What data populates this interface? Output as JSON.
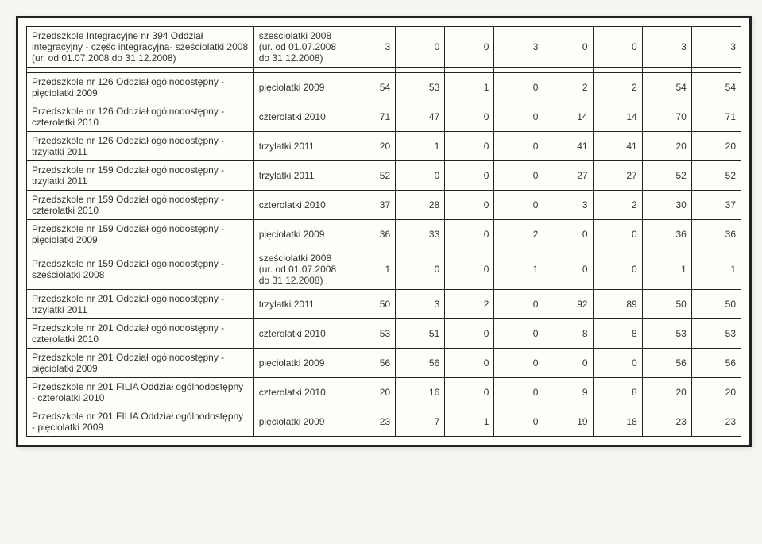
{
  "rows": [
    {
      "desc": "Przedszkole Integracyjne nr 394 Oddział integracyjny - część integracyjna- sześciolatki 2008 (ur. od 01.07.2008 do 31.12.2008)",
      "type": "sześciolatki 2008 (ur. od 01.07.2008 do 31.12.2008)",
      "v": [
        3,
        0,
        0,
        3,
        0,
        0,
        3,
        3
      ]
    },
    {
      "desc": "Przedszkole nr 126 Oddział ogólnodostępny - pięciolatki 2009",
      "type": "pięciolatki 2009",
      "v": [
        54,
        53,
        1,
        0,
        2,
        2,
        54,
        54
      ]
    },
    {
      "desc": "Przedszkole nr 126 Oddział ogólnodostępny - czterolatki 2010",
      "type": "czterolatki 2010",
      "v": [
        71,
        47,
        0,
        0,
        14,
        14,
        70,
        71
      ]
    },
    {
      "desc": "Przedszkole nr 126 Oddział ogólnodostępny - trzylatki 2011",
      "type": "trzylatki 2011",
      "v": [
        20,
        1,
        0,
        0,
        41,
        41,
        20,
        20
      ]
    },
    {
      "desc": "Przedszkole nr 159 Oddział ogólnodostępny - trzylatki 2011",
      "type": "trzylatki 2011",
      "v": [
        52,
        0,
        0,
        0,
        27,
        27,
        52,
        52
      ]
    },
    {
      "desc": "Przedszkole nr 159 Oddział ogólnodostępny - czterolatki 2010",
      "type": "czterolatki 2010",
      "v": [
        37,
        28,
        0,
        0,
        3,
        2,
        30,
        37
      ]
    },
    {
      "desc": "Przedszkole nr 159 Oddział ogólnodostępny - pięciolatki 2009",
      "type": "pięciolatki 2009",
      "v": [
        36,
        33,
        0,
        2,
        0,
        0,
        36,
        36
      ]
    },
    {
      "desc": "Przedszkole nr 159 Oddział ogólnodostępny - sześciolatki 2008",
      "type": "sześciolatki 2008 (ur. od 01.07.2008 do 31.12.2008)",
      "v": [
        1,
        0,
        0,
        1,
        0,
        0,
        1,
        1
      ]
    },
    {
      "desc": "Przedszkole nr 201 Oddział ogólnodostępny - trzylatki 2011",
      "type": "trzylatki 2011",
      "v": [
        50,
        3,
        2,
        0,
        92,
        89,
        50,
        50
      ]
    },
    {
      "desc": "Przedszkole nr 201 Oddział ogólnodostępny - czterolatki 2010",
      "type": "czterolatki 2010",
      "v": [
        53,
        51,
        0,
        0,
        8,
        8,
        53,
        53
      ]
    },
    {
      "desc": "Przedszkole nr 201 Oddział ogólnodostępny - pięciolatki 2009",
      "type": "pięciolatki 2009",
      "v": [
        56,
        56,
        0,
        0,
        0,
        0,
        56,
        56
      ]
    },
    {
      "desc": "Przedszkole nr 201 FILIA Oddział ogólnodostępny - czterolatki 2010",
      "type": "czterolatki 2010",
      "v": [
        20,
        16,
        0,
        0,
        9,
        8,
        20,
        20
      ]
    },
    {
      "desc": "Przedszkole nr 201 FILIA Oddział ogólnodostępny - pięciolatki 2009",
      "type": "pięciolatki 2009",
      "v": [
        23,
        7,
        1,
        0,
        19,
        18,
        23,
        23
      ]
    }
  ]
}
